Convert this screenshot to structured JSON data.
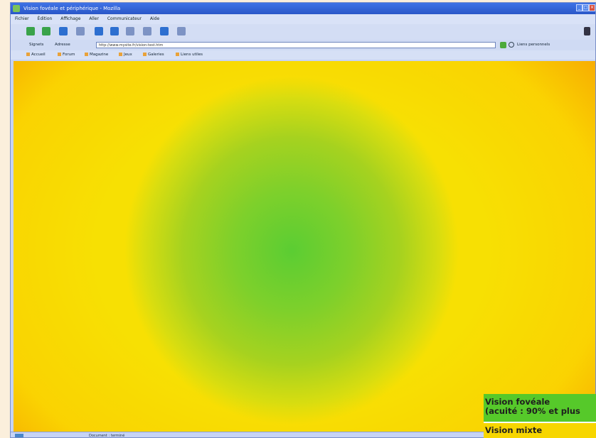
{
  "browser": {
    "title": "Vision fovéale et périphérique - Mozilla",
    "menu_items": [
      "Fichier",
      "Édition",
      "Affichage",
      "Aller",
      "Communicateur",
      "Aide"
    ],
    "nav": {
      "bookmarks_label": "Signets",
      "address_label": "Adresse"
    },
    "address": {
      "url": "http://www.mysite.fr/vision-test.htm"
    },
    "links_label": "Liens personnels",
    "bookmarks": [
      "Accueil",
      "Forum",
      "Magazine",
      "Jeux",
      "Galeries",
      "Liens utiles"
    ],
    "status_text": "Document : terminé"
  },
  "legend": {
    "foveal_line1": "Vision fovéale",
    "foveal_line2": "(acuité : 90% et plus",
    "mixte": "Vision mixte"
  },
  "colors": {
    "foveal": "#56c92a",
    "mixte": "#f7d600",
    "peripheral": "#e46000",
    "page_background": "#fbefdc"
  }
}
